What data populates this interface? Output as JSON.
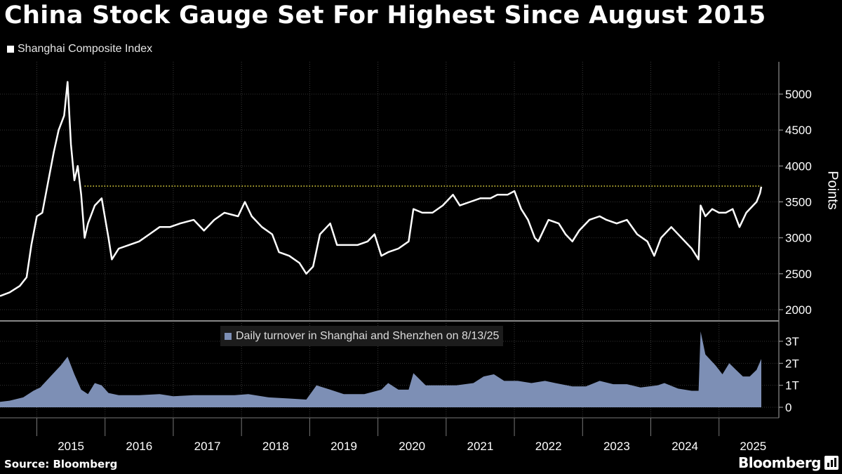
{
  "title": "China Stock Gauge Set For Highest Since August 2015",
  "source": "Source: Bloomberg",
  "brand": "Bloomberg",
  "colors": {
    "price_line": "#ffffff",
    "turnover_fill": "#7d8fb5",
    "reference_line": "#f0e442",
    "background": "#000000"
  },
  "chart_data": [
    {
      "type": "line",
      "legend": "Shanghai Composite Index",
      "ylabel": "Points",
      "ylim": [
        1900,
        5400
      ],
      "yticks": [
        2000,
        2500,
        3000,
        3500,
        4000,
        4500,
        5000
      ],
      "reference_line": 3720,
      "series": [
        {
          "name": "Shanghai Composite Index",
          "points": [
            [
              2014.46,
              2190
            ],
            [
              2014.6,
              2240
            ],
            [
              2014.75,
              2330
            ],
            [
              2014.85,
              2450
            ],
            [
              2014.92,
              2900
            ],
            [
              2015.0,
              3300
            ],
            [
              2015.08,
              3350
            ],
            [
              2015.17,
              3800
            ],
            [
              2015.25,
              4200
            ],
            [
              2015.32,
              4500
            ],
            [
              2015.4,
              4700
            ],
            [
              2015.45,
              5170
            ],
            [
              2015.5,
              4300
            ],
            [
              2015.55,
              3800
            ],
            [
              2015.6,
              4000
            ],
            [
              2015.65,
              3600
            ],
            [
              2015.7,
              3000
            ],
            [
              2015.75,
              3200
            ],
            [
              2015.85,
              3450
            ],
            [
              2015.95,
              3550
            ],
            [
              2016.05,
              3000
            ],
            [
              2016.1,
              2700
            ],
            [
              2016.2,
              2850
            ],
            [
              2016.35,
              2900
            ],
            [
              2016.5,
              2950
            ],
            [
              2016.65,
              3050
            ],
            [
              2016.8,
              3150
            ],
            [
              2016.95,
              3150
            ],
            [
              2017.1,
              3200
            ],
            [
              2017.3,
              3250
            ],
            [
              2017.45,
              3100
            ],
            [
              2017.6,
              3250
            ],
            [
              2017.75,
              3350
            ],
            [
              2017.95,
              3300
            ],
            [
              2018.05,
              3500
            ],
            [
              2018.15,
              3300
            ],
            [
              2018.3,
              3150
            ],
            [
              2018.45,
              3050
            ],
            [
              2018.55,
              2800
            ],
            [
              2018.7,
              2750
            ],
            [
              2018.85,
              2650
            ],
            [
              2018.95,
              2500
            ],
            [
              2019.05,
              2600
            ],
            [
              2019.15,
              3050
            ],
            [
              2019.3,
              3200
            ],
            [
              2019.4,
              2900
            ],
            [
              2019.55,
              2900
            ],
            [
              2019.7,
              2900
            ],
            [
              2019.85,
              2950
            ],
            [
              2019.95,
              3050
            ],
            [
              2020.05,
              2750
            ],
            [
              2020.15,
              2800
            ],
            [
              2020.3,
              2850
            ],
            [
              2020.45,
              2950
            ],
            [
              2020.52,
              3400
            ],
            [
              2020.65,
              3350
            ],
            [
              2020.8,
              3350
            ],
            [
              2020.95,
              3450
            ],
            [
              2021.1,
              3600
            ],
            [
              2021.2,
              3450
            ],
            [
              2021.35,
              3500
            ],
            [
              2021.5,
              3550
            ],
            [
              2021.65,
              3550
            ],
            [
              2021.75,
              3600
            ],
            [
              2021.9,
              3600
            ],
            [
              2022.0,
              3650
            ],
            [
              2022.1,
              3400
            ],
            [
              2022.2,
              3250
            ],
            [
              2022.3,
              3000
            ],
            [
              2022.35,
              2950
            ],
            [
              2022.5,
              3250
            ],
            [
              2022.65,
              3200
            ],
            [
              2022.75,
              3050
            ],
            [
              2022.85,
              2950
            ],
            [
              2022.95,
              3100
            ],
            [
              2023.1,
              3250
            ],
            [
              2023.25,
              3300
            ],
            [
              2023.35,
              3250
            ],
            [
              2023.5,
              3200
            ],
            [
              2023.65,
              3250
            ],
            [
              2023.8,
              3050
            ],
            [
              2023.95,
              2950
            ],
            [
              2024.05,
              2750
            ],
            [
              2024.15,
              3000
            ],
            [
              2024.3,
              3150
            ],
            [
              2024.45,
              3000
            ],
            [
              2024.6,
              2850
            ],
            [
              2024.7,
              2700
            ],
            [
              2024.73,
              3450
            ],
            [
              2024.8,
              3300
            ],
            [
              2024.9,
              3400
            ],
            [
              2025.0,
              3350
            ],
            [
              2025.1,
              3350
            ],
            [
              2025.2,
              3400
            ],
            [
              2025.3,
              3150
            ],
            [
              2025.4,
              3350
            ],
            [
              2025.5,
              3450
            ],
            [
              2025.55,
              3500
            ],
            [
              2025.6,
              3620
            ],
            [
              2025.62,
              3710
            ]
          ]
        }
      ]
    },
    {
      "type": "area",
      "legend": "Daily turnover in Shanghai and Shenzhen  on 8/13/25",
      "ylim": [
        0,
        3.5
      ],
      "yticks": [
        0,
        1,
        2,
        3
      ],
      "ytick_labels": [
        "0",
        "1T",
        "2T",
        "3T"
      ],
      "series": [
        {
          "name": "Daily turnover in Shanghai and Shenzhen",
          "points": [
            [
              2014.46,
              0.25
            ],
            [
              2014.6,
              0.3
            ],
            [
              2014.8,
              0.45
            ],
            [
              2014.95,
              0.75
            ],
            [
              2015.05,
              0.9
            ],
            [
              2015.2,
              1.4
            ],
            [
              2015.35,
              1.9
            ],
            [
              2015.45,
              2.3
            ],
            [
              2015.55,
              1.5
            ],
            [
              2015.65,
              0.8
            ],
            [
              2015.75,
              0.6
            ],
            [
              2015.85,
              1.1
            ],
            [
              2015.95,
              1.0
            ],
            [
              2016.05,
              0.65
            ],
            [
              2016.2,
              0.55
            ],
            [
              2016.5,
              0.55
            ],
            [
              2016.8,
              0.6
            ],
            [
              2017.0,
              0.5
            ],
            [
              2017.3,
              0.55
            ],
            [
              2017.6,
              0.55
            ],
            [
              2017.9,
              0.55
            ],
            [
              2018.1,
              0.6
            ],
            [
              2018.4,
              0.45
            ],
            [
              2018.7,
              0.4
            ],
            [
              2018.95,
              0.35
            ],
            [
              2019.1,
              1.0
            ],
            [
              2019.3,
              0.8
            ],
            [
              2019.5,
              0.6
            ],
            [
              2019.8,
              0.6
            ],
            [
              2020.05,
              0.8
            ],
            [
              2020.15,
              1.1
            ],
            [
              2020.3,
              0.8
            ],
            [
              2020.45,
              0.8
            ],
            [
              2020.52,
              1.55
            ],
            [
              2020.7,
              1.0
            ],
            [
              2020.95,
              1.0
            ],
            [
              2021.15,
              1.0
            ],
            [
              2021.4,
              1.1
            ],
            [
              2021.55,
              1.4
            ],
            [
              2021.7,
              1.5
            ],
            [
              2021.85,
              1.2
            ],
            [
              2022.05,
              1.2
            ],
            [
              2022.25,
              1.1
            ],
            [
              2022.45,
              1.2
            ],
            [
              2022.6,
              1.1
            ],
            [
              2022.85,
              0.95
            ],
            [
              2023.05,
              0.95
            ],
            [
              2023.25,
              1.2
            ],
            [
              2023.45,
              1.05
            ],
            [
              2023.65,
              1.05
            ],
            [
              2023.85,
              0.9
            ],
            [
              2024.1,
              1.0
            ],
            [
              2024.2,
              1.1
            ],
            [
              2024.4,
              0.85
            ],
            [
              2024.6,
              0.75
            ],
            [
              2024.7,
              0.75
            ],
            [
              2024.73,
              3.45
            ],
            [
              2024.8,
              2.4
            ],
            [
              2024.95,
              1.9
            ],
            [
              2025.05,
              1.5
            ],
            [
              2025.15,
              2.0
            ],
            [
              2025.25,
              1.7
            ],
            [
              2025.35,
              1.4
            ],
            [
              2025.45,
              1.4
            ],
            [
              2025.55,
              1.7
            ],
            [
              2025.62,
              2.2
            ]
          ]
        }
      ]
    }
  ],
  "x_axis": {
    "xlim": [
      2014.46,
      2025.62
    ],
    "labels": [
      "2015",
      "2016",
      "2017",
      "2018",
      "2019",
      "2020",
      "2021",
      "2022",
      "2023",
      "2024",
      "2025"
    ]
  }
}
